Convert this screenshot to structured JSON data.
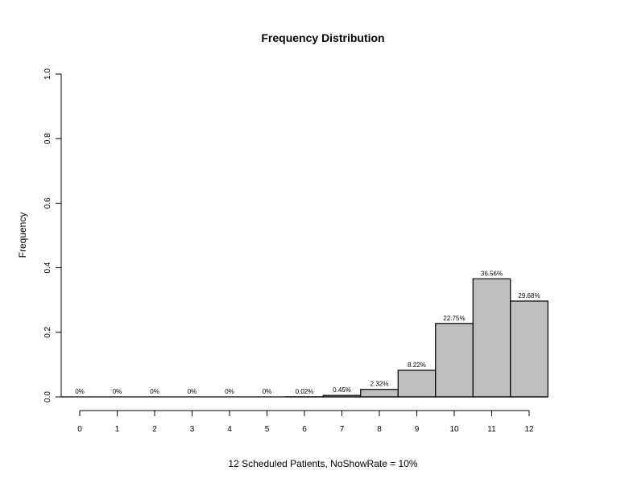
{
  "chart_data": {
    "type": "bar",
    "title": "Frequency Distribution",
    "xlabel": "12 Scheduled Patients,  NoShowRate = 10%",
    "ylabel": "Frequency",
    "categories": [
      "0",
      "1",
      "2",
      "3",
      "4",
      "5",
      "6",
      "7",
      "8",
      "9",
      "10",
      "11",
      "12"
    ],
    "values": [
      0,
      0,
      0,
      0,
      0,
      0,
      0.0002,
      0.0045,
      0.0232,
      0.0822,
      0.2275,
      0.3656,
      0.2968
    ],
    "data_labels": [
      "0%",
      "0%",
      "0%",
      "0%",
      "0%",
      "0%",
      "0.02%",
      "0.45%",
      "2.32%",
      "8.22%",
      "22.75%",
      "36.56%",
      "29.68%"
    ],
    "ylim": [
      0,
      1
    ],
    "yticks": [
      "0.0",
      "0.2",
      "0.4",
      "0.6",
      "0.8",
      "1.0"
    ],
    "grid": false,
    "bar_color": "#bebebe",
    "edge_color": "#000000"
  }
}
